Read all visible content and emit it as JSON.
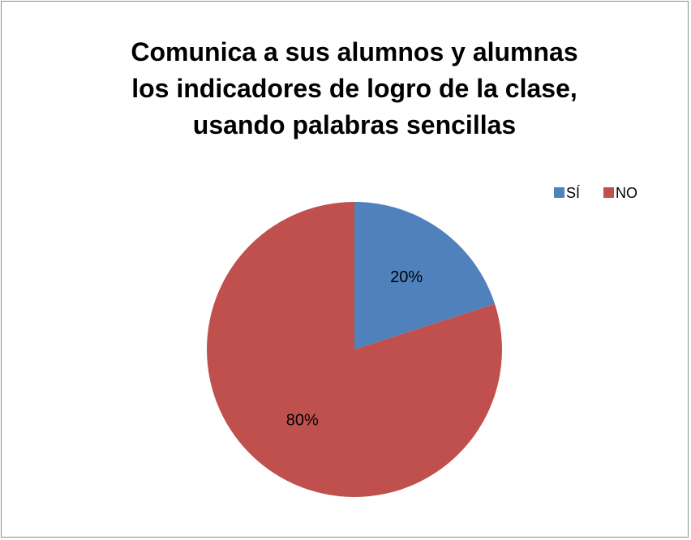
{
  "chart_data": {
    "type": "pie",
    "title": "Comunica a sus alumnos y alumnas\nlos indicadores de logro de la clase,\nusando palabras sencillas",
    "categories": [
      "SÍ",
      "NO"
    ],
    "values": [
      20,
      80
    ],
    "value_labels": [
      "20%",
      "80%"
    ],
    "colors": [
      "#4f81bd",
      "#c0504d"
    ],
    "legend": "top-right"
  }
}
